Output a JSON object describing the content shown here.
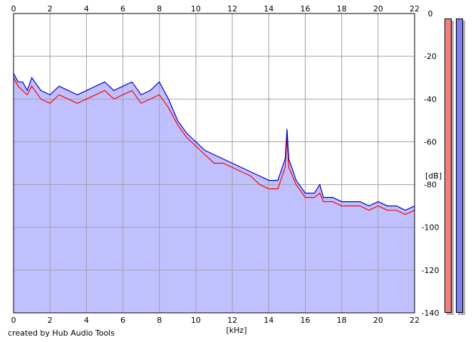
{
  "footer": {
    "credit": "created by Hub Audio Tools"
  },
  "meters": [
    {
      "name": "left-channel",
      "color": "#f08080"
    },
    {
      "name": "right-channel",
      "color": "#8080f0"
    }
  ],
  "chart_data": {
    "type": "line",
    "title": "",
    "xlabel": "[kHz]",
    "ylabel": "[dB]",
    "xlim": [
      0,
      22
    ],
    "ylim": [
      -140,
      0
    ],
    "x_ticks": [
      0,
      2,
      4,
      6,
      8,
      10,
      12,
      14,
      16,
      18,
      20,
      22
    ],
    "y_ticks": [
      0,
      -20,
      -40,
      -60,
      -80,
      -100,
      -120,
      -140
    ],
    "grid": true,
    "legend": "none",
    "fill_color": "#c0c0ff",
    "series": [
      {
        "color": "#ff0000",
        "x": [
          0,
          0.25,
          0.5,
          0.75,
          1,
          1.5,
          2,
          2.5,
          3,
          3.5,
          4,
          4.5,
          5,
          5.5,
          6,
          6.5,
          7,
          7.5,
          8,
          8.5,
          9,
          9.5,
          10,
          10.5,
          11,
          11.5,
          12,
          12.5,
          13,
          13.5,
          14,
          14.5,
          14.9,
          15,
          15.1,
          15.5,
          16,
          16.5,
          16.8,
          17,
          17.5,
          18,
          18.5,
          19,
          19.5,
          20,
          20.5,
          21,
          21.5,
          22
        ],
        "y": [
          -30,
          -34,
          -36,
          -38,
          -34,
          -40,
          -42,
          -38,
          -40,
          -42,
          -40,
          -38,
          -36,
          -40,
          -38,
          -36,
          -42,
          -40,
          -38,
          -44,
          -52,
          -58,
          -62,
          -66,
          -70,
          -70,
          -72,
          -74,
          -76,
          -80,
          -82,
          -82,
          -72,
          -58,
          -72,
          -80,
          -86,
          -86,
          -84,
          -88,
          -88,
          -90,
          -90,
          -90,
          -92,
          -90,
          -92,
          -92,
          -94,
          -92
        ]
      },
      {
        "color": "#0000cc",
        "x": [
          0,
          0.25,
          0.5,
          0.75,
          1,
          1.5,
          2,
          2.5,
          3,
          3.5,
          4,
          4.5,
          5,
          5.5,
          6,
          6.5,
          7,
          7.5,
          8,
          8.5,
          9,
          9.5,
          10,
          10.5,
          11,
          11.5,
          12,
          12.5,
          13,
          13.5,
          14,
          14.5,
          14.9,
          15,
          15.1,
          15.5,
          16,
          16.5,
          16.8,
          17,
          17.5,
          18,
          18.5,
          19,
          19.5,
          20,
          20.5,
          21,
          21.5,
          22
        ],
        "y": [
          -28,
          -32,
          -32,
          -36,
          -30,
          -36,
          -38,
          -34,
          -36,
          -38,
          -36,
          -34,
          -32,
          -36,
          -34,
          -32,
          -38,
          -36,
          -32,
          -40,
          -50,
          -56,
          -60,
          -64,
          -66,
          -68,
          -70,
          -72,
          -74,
          -76,
          -78,
          -78,
          -68,
          -54,
          -68,
          -78,
          -84,
          -84,
          -80,
          -86,
          -86,
          -88,
          -88,
          -88,
          -90,
          -88,
          -90,
          -90,
          -92,
          -90
        ]
      }
    ]
  }
}
